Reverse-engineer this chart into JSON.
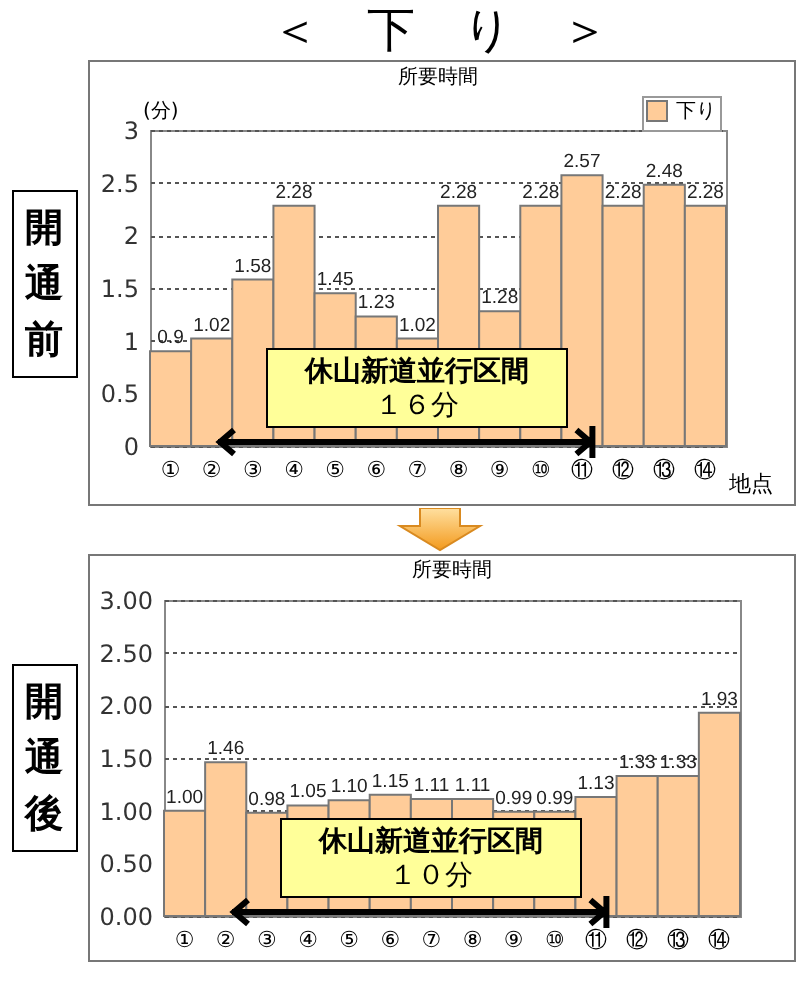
{
  "chart_data": [
    {
      "type": "bar",
      "title": "＜　下　り　＞",
      "subtitle": "所要時間",
      "ylabel": "(分)",
      "xlabel": "地点",
      "categories": [
        "①",
        "②",
        "③",
        "④",
        "⑤",
        "⑥",
        "⑦",
        "⑧",
        "⑨",
        "⑩",
        "⑪",
        "⑫",
        "⑬",
        "⑭"
      ],
      "series": [
        {
          "name": "下り",
          "color": "#ffcc99",
          "values": [
            0.9,
            1.02,
            1.58,
            2.28,
            1.45,
            1.23,
            1.02,
            2.28,
            1.28,
            2.28,
            2.57,
            2.28,
            2.48,
            2.28
          ]
        }
      ],
      "ylim": [
        0,
        3
      ],
      "yticks": [
        0,
        0.5,
        1,
        1.5,
        2,
        2.5,
        3
      ],
      "grid": "y",
      "legend": "top right",
      "data_labels": true,
      "annotations": [
        "開通前",
        "休山新道並行区間",
        "１６分"
      ]
    },
    {
      "type": "bar",
      "title": "所要時間",
      "categories": [
        "①",
        "②",
        "③",
        "④",
        "⑤",
        "⑥",
        "⑦",
        "⑧",
        "⑨",
        "⑩",
        "⑪",
        "⑫",
        "⑬",
        "⑭"
      ],
      "series": [
        {
          "color": "#ffcc99",
          "values": [
            1.0,
            1.46,
            0.98,
            1.05,
            1.1,
            1.15,
            1.11,
            1.11,
            0.99,
            0.99,
            1.13,
            1.33,
            1.33,
            1.93
          ],
          "value_labels": [
            "1.00",
            "1.46",
            "0.98",
            "1.05",
            "1.10",
            "1.15",
            "1.11",
            "1.11",
            "0.99",
            "0.99",
            "1.13",
            "1.33",
            "1.33",
            "1.93"
          ]
        }
      ],
      "ylim": [
        0,
        3
      ],
      "yticks": [
        {
          "value": 0,
          "label": "0.00"
        },
        {
          "value": 0.5,
          "label": "0.50"
        },
        {
          "value": 1,
          "label": "1.00"
        },
        {
          "value": 1.5,
          "label": "1.50"
        },
        {
          "value": 2,
          "label": "2.00"
        },
        {
          "value": 2.5,
          "label": "2.50"
        },
        {
          "value": 3,
          "label": "3.00"
        }
      ],
      "grid": "y",
      "annotations": [
        "開通後",
        "休山新道並行区間",
        "１０分"
      ]
    }
  ]
}
